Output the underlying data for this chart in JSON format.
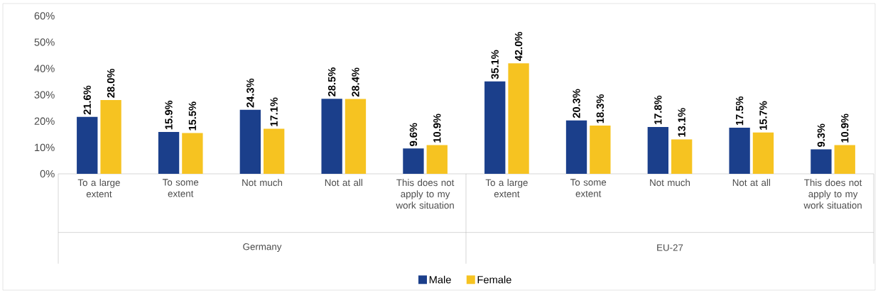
{
  "chart_data": {
    "type": "bar",
    "categories": [
      "To a large extent",
      "To some extent",
      "Not much",
      "Not at all",
      "This does not apply to my work situation",
      "To a large extent",
      "To some extent",
      "Not much",
      "Not at all",
      "This does not apply to my work situation"
    ],
    "series": [
      {
        "name": "Male",
        "color": "#1b3f8b",
        "values": [
          21.6,
          15.9,
          24.3,
          28.5,
          9.6,
          35.1,
          20.3,
          17.8,
          17.5,
          9.3
        ],
        "value_labels": [
          "21.6%",
          "15.9%",
          "24.3%",
          "28.5%",
          "9.6%",
          "35.1%",
          "20.3%",
          "17.8%",
          "17.5%",
          "9.3%"
        ]
      },
      {
        "name": "Female",
        "color": "#f6c321",
        "values": [
          28.0,
          15.5,
          17.1,
          28.4,
          10.9,
          42.0,
          18.3,
          13.1,
          15.7,
          10.9
        ],
        "value_labels": [
          "28.0%",
          "15.5%",
          "17.1%",
          "28.4%",
          "10.9%",
          "42.0%",
          "18.3%",
          "13.1%",
          "15.7%",
          "10.9%"
        ]
      }
    ],
    "ylim": [
      0,
      60
    ],
    "yticks": [
      {
        "value": 0,
        "label": "0%"
      },
      {
        "value": 10,
        "label": "10%"
      },
      {
        "value": 20,
        "label": "20%"
      },
      {
        "value": 30,
        "label": "30%"
      },
      {
        "value": 40,
        "label": "40%"
      },
      {
        "value": 50,
        "label": "50%"
      },
      {
        "value": 60,
        "label": "60%"
      }
    ],
    "annotations": [
      "Germany",
      "EU-27"
    ],
    "legend": "bottom"
  }
}
